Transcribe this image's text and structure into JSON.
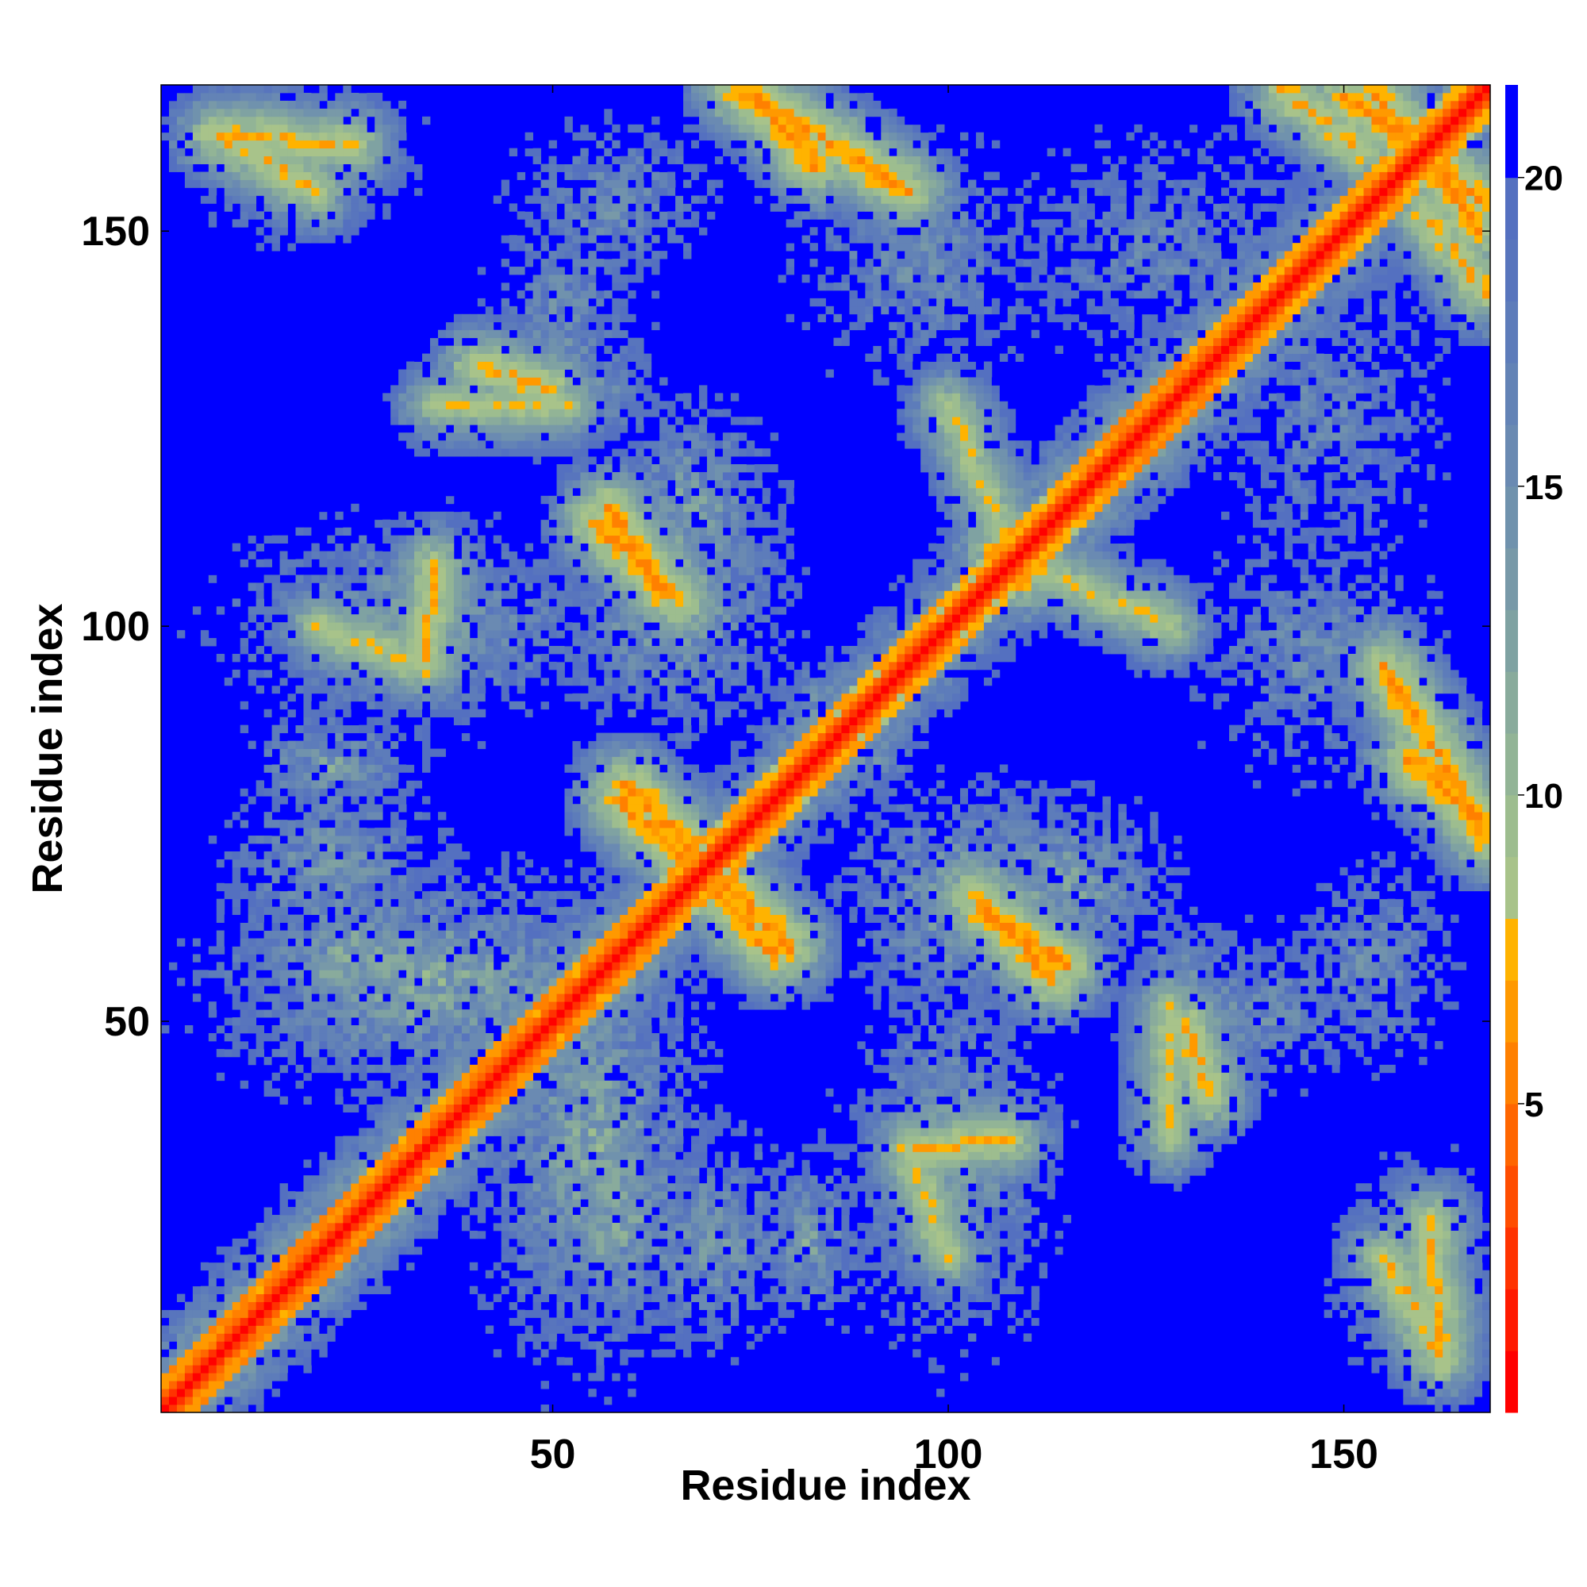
{
  "chart_data": {
    "type": "heatmap",
    "title": "",
    "xlabel": "Residue index",
    "ylabel": "Residue index",
    "xlim": [
      1,
      168
    ],
    "ylim": [
      1,
      168
    ],
    "x_ticks": [
      50,
      100,
      150
    ],
    "y_ticks": [
      50,
      100,
      150
    ],
    "grid": false,
    "colorbar": {
      "position": "right",
      "range": [
        0,
        21.5
      ],
      "ticks": [
        5,
        10,
        15,
        20
      ],
      "levels": [
        {
          "max": 1,
          "color": "#ff0000"
        },
        {
          "max": 2,
          "color": "#ff1a00"
        },
        {
          "max": 3,
          "color": "#ff3300"
        },
        {
          "max": 4,
          "color": "#ff4d00"
        },
        {
          "max": 5,
          "color": "#ff6600"
        },
        {
          "max": 6,
          "color": "#ff8000"
        },
        {
          "max": 7,
          "color": "#ff9900"
        },
        {
          "max": 8,
          "color": "#ffb300"
        },
        {
          "max": 9,
          "color": "#a8c38a"
        },
        {
          "max": 10,
          "color": "#9dbd8f"
        },
        {
          "max": 11,
          "color": "#92b496"
        },
        {
          "max": 12,
          "color": "#89ab9c"
        },
        {
          "max": 13,
          "color": "#7fa2a2"
        },
        {
          "max": 14,
          "color": "#7899a8"
        },
        {
          "max": 15,
          "color": "#7092ad"
        },
        {
          "max": 16,
          "color": "#6a8ab2"
        },
        {
          "max": 17,
          "color": "#6383b6"
        },
        {
          "max": 18,
          "color": "#5d7cba"
        },
        {
          "max": 19,
          "color": "#5875bd"
        },
        {
          "max": 20,
          "color": "#5470c0"
        },
        {
          "max": 21.5,
          "color": "#0000ff"
        }
      ]
    },
    "structure": {
      "description_note": "",
      "diagonal_band_width": 2,
      "helix_band_ranges": [
        [
          1,
          60
        ],
        [
          118,
          135
        ]
      ],
      "contact_segments": [
        {
          "from": [
            57,
            115
          ],
          "to": [
            64,
            104
          ],
          "min_distance": 5
        },
        {
          "from": [
            59,
            80
          ],
          "to": [
            67,
            72
          ],
          "min_distance": 5
        },
        {
          "from": [
            70,
            67
          ],
          "to": [
            78,
            58
          ],
          "min_distance": 5
        },
        {
          "from": [
            103,
            66
          ],
          "to": [
            113,
            55
          ],
          "min_distance": 5
        },
        {
          "from": [
            73,
            170
          ],
          "to": [
            83,
            158
          ],
          "min_distance": 5
        },
        {
          "from": [
            152,
            170
          ],
          "to": [
            167,
            150
          ],
          "min_distance": 5
        },
        {
          "from": [
            142,
            168
          ],
          "to": [
            152,
            160
          ],
          "min_distance": 6
        },
        {
          "from": [
            155,
            95
          ],
          "to": [
            168,
            73
          ],
          "min_distance": 5
        },
        {
          "from": [
            7,
            162
          ],
          "to": [
            25,
            161
          ],
          "min_distance": 6
        },
        {
          "from": [
            100,
            128
          ],
          "to": [
            110,
            105
          ],
          "min_distance": 7
        },
        {
          "from": [
            35,
            128
          ],
          "to": [
            52,
            128
          ],
          "min_distance": 7
        },
        {
          "from": [
            20,
            100
          ],
          "to": [
            33,
            95
          ],
          "min_distance": 7
        },
        {
          "from": [
            130,
            50
          ],
          "to": [
            133,
            40
          ],
          "min_distance": 6
        },
        {
          "from": [
            95,
            34
          ],
          "to": [
            108,
            35
          ],
          "min_distance": 6
        },
        {
          "from": [
            155,
            20
          ],
          "to": [
            162,
            8
          ],
          "min_distance": 6
        }
      ],
      "regions": [
        {
          "x": [
            7,
            33
          ],
          "y": [
            152,
            168
          ],
          "min_distance": 9
        },
        {
          "x": [
            38,
            65
          ],
          "y": [
            118,
            160
          ],
          "min_distance": 12
        },
        {
          "x": [
            5,
            60
          ],
          "y": [
            85,
            115
          ],
          "min_distance": 10
        },
        {
          "x": [
            5,
            40
          ],
          "y": [
            55,
            85
          ],
          "min_distance": 11
        },
        {
          "x": [
            5,
            65
          ],
          "y": [
            40,
            70
          ],
          "min_distance": 9
        },
        {
          "x": [
            45,
            70
          ],
          "y": [
            10,
            40
          ],
          "min_distance": 9
        },
        {
          "x": [
            75,
            90
          ],
          "y": [
            10,
            35
          ],
          "min_distance": 10
        },
        {
          "x": [
            90,
            110
          ],
          "y": [
            20,
            45
          ],
          "min_distance": 9
        },
        {
          "x": [
            85,
            125
          ],
          "y": [
            50,
            80
          ],
          "min_distance": 9
        },
        {
          "x": [
            120,
            140
          ],
          "y": [
            35,
            65
          ],
          "min_distance": 10
        },
        {
          "x": [
            140,
            168
          ],
          "y": [
            40,
            75
          ],
          "min_distance": 12
        },
        {
          "x": [
            148,
            165
          ],
          "y": [
            5,
            30
          ],
          "min_distance": 10
        },
        {
          "x": [
            125,
            168
          ],
          "y": [
            75,
            118
          ],
          "min_distance": 12
        },
        {
          "x": [
            95,
            160
          ],
          "y": [
            125,
            170
          ],
          "min_distance": 13
        },
        {
          "x": [
            70,
            100
          ],
          "y": [
            80,
            100
          ],
          "min_distance": 12
        },
        {
          "x": [
            55,
            80
          ],
          "y": [
            100,
            130
          ],
          "min_distance": 10
        }
      ]
    }
  }
}
